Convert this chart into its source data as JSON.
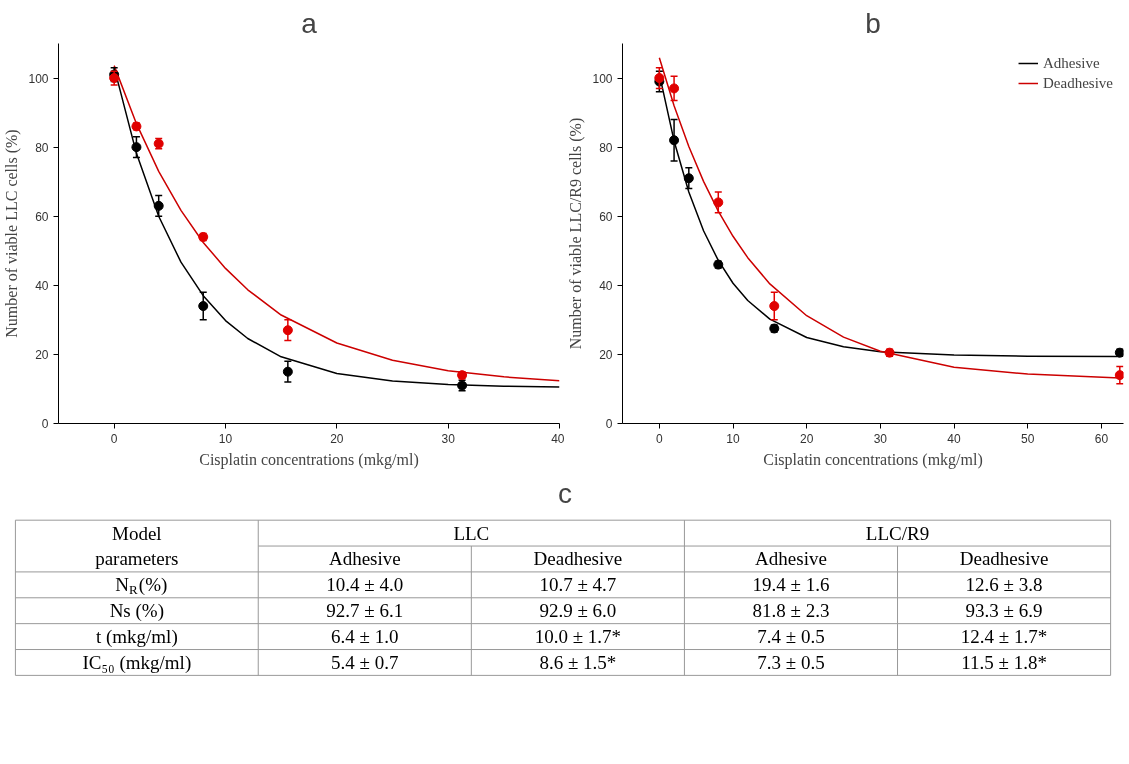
{
  "chart_data": [
    {
      "type": "scatter",
      "title": "a",
      "xlabel": "Cisplatin concentrations (mkg/ml)",
      "ylabel": "Number of viable LLC cells (%)",
      "xlim": [
        -5,
        40
      ],
      "ylim": [
        0,
        110
      ],
      "xticks": [
        0,
        10,
        20,
        30,
        40
      ],
      "yticks": [
        0,
        20,
        40,
        60,
        80,
        100
      ],
      "series": [
        {
          "type": "line",
          "color": "#000000",
          "x": [
            0,
            2,
            4,
            6,
            8,
            10,
            12,
            15,
            20,
            25,
            30,
            35,
            40
          ],
          "values": [
            103.1,
            78.2,
            60.0,
            46.7,
            37.0,
            29.8,
            24.6,
            19.3,
            14.5,
            12.3,
            11.3,
            10.8,
            10.6
          ]
        },
        {
          "type": "line",
          "color": "#cc0000",
          "x": [
            0,
            2,
            4,
            6,
            8,
            10,
            12,
            15,
            20,
            25,
            30,
            35,
            40
          ],
          "values": [
            103.6,
            86.8,
            73.0,
            61.7,
            52.4,
            44.9,
            38.7,
            31.4,
            23.3,
            18.3,
            15.3,
            13.5,
            12.4
          ]
        },
        {
          "type": "scatter",
          "marker": "circle",
          "color": "#000000",
          "x": [
            0,
            2,
            4,
            8,
            15.6,
            31.25
          ],
          "values": [
            101,
            80,
            63,
            34,
            15,
            11
          ],
          "errors": [
            2,
            3,
            3,
            4,
            3,
            1.5
          ]
        },
        {
          "type": "scatter",
          "marker": "circle",
          "color": "#e00000",
          "x": [
            0,
            2,
            4,
            8,
            15.6,
            31.25
          ],
          "values": [
            100,
            86,
            81,
            54,
            27,
            14
          ],
          "errors": [
            2,
            1,
            1.5,
            1,
            3,
            1
          ]
        }
      ]
    },
    {
      "type": "scatter",
      "title": "b",
      "xlabel": "Cisplatin concentrations (mkg/ml)",
      "ylabel": "Number of viable LLC/R9 cells (%)",
      "xlim": [
        -5,
        63
      ],
      "ylim": [
        0,
        110
      ],
      "xticks": [
        0,
        10,
        20,
        30,
        40,
        50,
        60
      ],
      "yticks": [
        0,
        20,
        40,
        60,
        80,
        100
      ],
      "legend": "top right",
      "series": [
        {
          "type": "line",
          "name": "Adhesive",
          "color": "#000000",
          "x": [
            0,
            2,
            4,
            6,
            8,
            10,
            12,
            15,
            20,
            25,
            30,
            40,
            50,
            62.5
          ],
          "values": [
            101.2,
            81.8,
            67.0,
            55.8,
            47.2,
            40.6,
            35.6,
            30.2,
            24.9,
            22.2,
            20.8,
            19.8,
            19.5,
            19.4
          ]
        },
        {
          "type": "line",
          "name": "Deadhesive",
          "color": "#cc0000",
          "x": [
            0,
            2,
            4,
            6,
            8,
            10,
            12,
            15,
            20,
            25,
            30,
            40,
            50,
            62.5
          ],
          "values": [
            105.9,
            92.0,
            80.2,
            70.1,
            61.5,
            54.2,
            48.0,
            40.4,
            31.2,
            25.0,
            20.9,
            16.3,
            14.3,
            13.2
          ]
        },
        {
          "type": "scatter",
          "marker": "circle",
          "color": "#000000",
          "x": [
            0,
            2,
            4,
            8,
            15.6,
            62.5
          ],
          "values": [
            99,
            82,
            71,
            46,
            27.5,
            20.5
          ],
          "errors": [
            3,
            6,
            3,
            1,
            1,
            1
          ]
        },
        {
          "type": "scatter",
          "marker": "circle",
          "color": "#e00000",
          "x": [
            0,
            2,
            8,
            15.6,
            31.25,
            62.5
          ],
          "values": [
            100,
            97,
            64,
            34,
            20.5,
            14
          ],
          "errors": [
            3,
            3.5,
            3,
            4,
            1,
            2.5
          ]
        }
      ]
    },
    {
      "type": "other",
      "title": "c",
      "cell_labels": [
        [
          "Model",
          "LLC",
          null,
          "LLC/R9",
          null
        ],
        [
          "parameters",
          "Adhesive",
          "Deadhesive",
          "Adhesive",
          "Deadhesive"
        ],
        [
          "N$_{R}$(%)",
          "10.4 ± 4.0",
          "10.7 ± 4.7",
          "19.4 ± 1.6",
          "12.6 ± 3.8"
        ],
        [
          "Ns (%)",
          "92.7 ± 6.1",
          "92.9 ± 6.0",
          "81.8 ± 2.3",
          "93.3 ± 6.9"
        ],
        [
          "t (mkg/ml)",
          "6.4 ± 1.0",
          "10.0 ± 1.7*",
          "7.4 ± 0.5",
          "12.4 ± 1.7*"
        ],
        [
          "IC₅₀ (mkg/ml)",
          "5.4 ± 0.7",
          "8.6 ± 1.5*",
          "7.3 ± 0.5",
          "11.5 ± 1.8*"
        ]
      ]
    }
  ]
}
